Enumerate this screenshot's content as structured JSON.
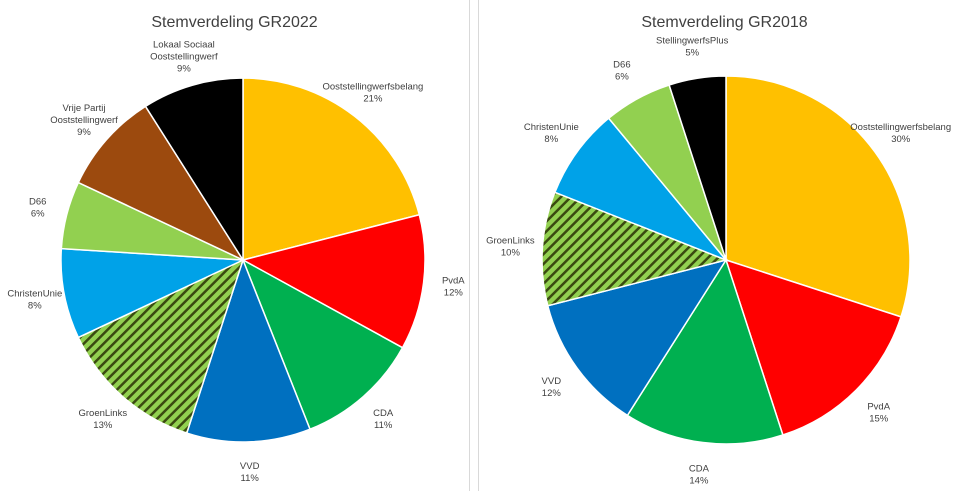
{
  "chart_data": [
    {
      "type": "pie",
      "title": "Stemverdeling GR2022",
      "slices": [
        {
          "name": "Ooststellingwerfsbelang",
          "value": 21,
          "label": [
            "Ooststellingwerfsbelang",
            "21%"
          ],
          "color": "#FFC000",
          "pattern": false
        },
        {
          "name": "PvdA",
          "value": 12,
          "label": [
            "PvdA",
            "12%"
          ],
          "color": "#FF0000",
          "pattern": false
        },
        {
          "name": "CDA",
          "value": 11,
          "label": [
            "CDA",
            "11%"
          ],
          "color": "#00B050",
          "pattern": false
        },
        {
          "name": "VVD",
          "value": 11,
          "label": [
            "VVD",
            "11%"
          ],
          "color": "#0070C0",
          "pattern": false
        },
        {
          "name": "GroenLinks",
          "value": 13,
          "label": [
            "GroenLinks",
            "13%"
          ],
          "color": "#92D050",
          "pattern": true
        },
        {
          "name": "ChristenUnie",
          "value": 8,
          "label": [
            "ChristenUnie",
            "8%"
          ],
          "color": "#00A2E8",
          "pattern": false
        },
        {
          "name": "D66",
          "value": 6,
          "label": [
            "D66",
            "6%"
          ],
          "color": "#92D050",
          "pattern": false
        },
        {
          "name": "Vrije Partij Ooststellingwerf",
          "value": 9,
          "label": [
            "Vrije Partij",
            "Ooststellingwerf",
            "9%"
          ],
          "color": "#9C4A0E",
          "pattern": false
        },
        {
          "name": "Lokaal Sociaal Ooststellingwerf",
          "value": 9,
          "label": [
            "Lokaal Sociaal",
            "Ooststellingwerf",
            "9%"
          ],
          "color": "#000000",
          "pattern": false
        }
      ]
    },
    {
      "type": "pie",
      "title": "Stemverdeling GR2018",
      "slices": [
        {
          "name": "Ooststellingwerfsbelang",
          "value": 30,
          "label": [
            "Ooststellingwerfsbelang",
            "30%"
          ],
          "color": "#FFC000",
          "pattern": false
        },
        {
          "name": "PvdA",
          "value": 15,
          "label": [
            "PvdA",
            "15%"
          ],
          "color": "#FF0000",
          "pattern": false
        },
        {
          "name": "CDA",
          "value": 14,
          "label": [
            "CDA",
            "14%"
          ],
          "color": "#00B050",
          "pattern": false
        },
        {
          "name": "VVD",
          "value": 12,
          "label": [
            "VVD",
            "12%"
          ],
          "color": "#0070C0",
          "pattern": false
        },
        {
          "name": "GroenLinks",
          "value": 10,
          "label": [
            "GroenLinks",
            "10%"
          ],
          "color": "#92D050",
          "pattern": true
        },
        {
          "name": "ChristenUnie",
          "value": 8,
          "label": [
            "ChristenUnie",
            "8%"
          ],
          "color": "#00A2E8",
          "pattern": false
        },
        {
          "name": "D66",
          "value": 6,
          "label": [
            "D66",
            "6%"
          ],
          "color": "#92D050",
          "pattern": false
        },
        {
          "name": "StellingwerfsPlus",
          "value": 5,
          "label": [
            "StellingwerfsPlus",
            "5%"
          ],
          "color": "#000000",
          "pattern": false
        }
      ]
    }
  ]
}
